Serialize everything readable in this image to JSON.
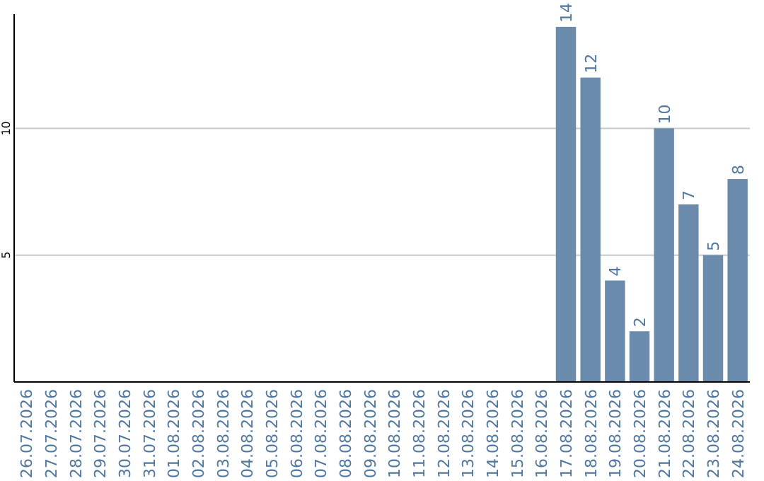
{
  "chart_data": {
    "type": "bar",
    "categories": [
      "26.07.2026",
      "27.07.2026",
      "28.07.2026",
      "29.07.2026",
      "30.07.2026",
      "31.07.2026",
      "01.08.2026",
      "02.08.2026",
      "03.08.2026",
      "04.08.2026",
      "05.08.2026",
      "06.08.2026",
      "07.08.2026",
      "08.08.2026",
      "09.08.2026",
      "10.08.2026",
      "11.08.2026",
      "12.08.2026",
      "13.08.2026",
      "14.08.2026",
      "15.08.2026",
      "16.08.2026",
      "17.08.2026",
      "18.08.2026",
      "19.08.2026",
      "20.08.2026",
      "21.08.2026",
      "22.08.2026",
      "23.08.2026",
      "24.08.2026"
    ],
    "values": [
      0,
      0,
      0,
      0,
      0,
      0,
      0,
      0,
      0,
      0,
      0,
      0,
      0,
      0,
      0,
      0,
      0,
      0,
      0,
      0,
      0,
      0,
      14,
      12,
      4,
      2,
      10,
      7,
      5,
      8
    ],
    "value_labels": [
      null,
      null,
      null,
      null,
      null,
      null,
      null,
      null,
      null,
      null,
      null,
      null,
      null,
      null,
      null,
      null,
      null,
      null,
      null,
      null,
      null,
      null,
      "14",
      "12",
      "4",
      "2",
      "10",
      "7",
      "5",
      "8"
    ],
    "color": "#6a8bab",
    "ylim": [
      0,
      14.5
    ],
    "yticks": [
      5,
      10
    ],
    "grid": "y"
  }
}
